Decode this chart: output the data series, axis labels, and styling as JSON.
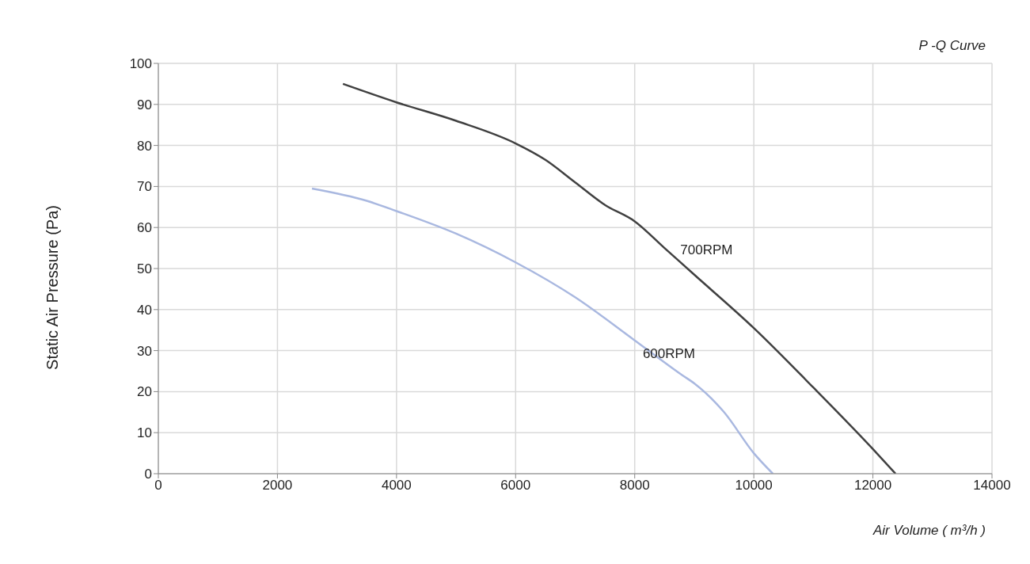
{
  "chart_data": {
    "type": "line",
    "title": "P -Q Curve",
    "xlabel": "Air Volume ( m³/h )",
    "ylabel": "Static Air Pressure  (Pa)",
    "xlim": [
      0,
      14000
    ],
    "xticks": [
      0,
      2000,
      4000,
      6000,
      8000,
      10000,
      12000,
      14000
    ],
    "ylim": [
      0,
      100
    ],
    "yticks": [
      0,
      10,
      20,
      30,
      40,
      50,
      60,
      70,
      80,
      90,
      100
    ],
    "grid": true,
    "legend": false,
    "marker": "none",
    "line_style": "solid",
    "series": [
      {
        "name": "700RPM",
        "color": "#404040",
        "x": [
          3100,
          4000,
          5000,
          6000,
          6500,
          7000,
          7500,
          8000,
          8500,
          9000,
          10000,
          11000,
          12000,
          12380
        ],
        "values": [
          95,
          90.5,
          86,
          80.5,
          76.5,
          71,
          65.5,
          61.5,
          55,
          48.5,
          35.5,
          21,
          6,
          0
        ]
      },
      {
        "name": "600RPM",
        "color": "#a9b8e0",
        "x": [
          2580,
          3500,
          4000,
          5000,
          6000,
          7000,
          8000,
          8800,
          9000,
          9500,
          10000,
          10320
        ],
        "values": [
          69.5,
          66.5,
          64,
          58.5,
          51.5,
          43,
          32.5,
          24,
          22,
          15,
          5,
          0
        ]
      }
    ]
  }
}
